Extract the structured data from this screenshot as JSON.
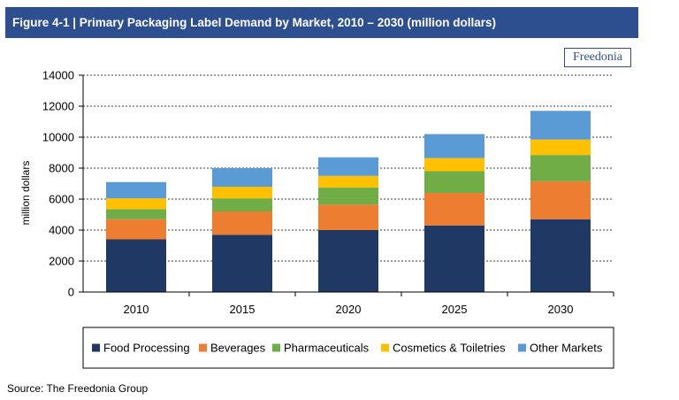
{
  "header": {
    "title": "Figure 4-1 | Primary Packaging Label Demand by Market, 2010 – 2030 (million dollars)"
  },
  "logo": {
    "text": "Freedonia"
  },
  "source": "Source: The Freedonia Group",
  "chart_data": {
    "type": "bar",
    "stacked": true,
    "title": "",
    "xlabel": "",
    "ylabel": "million dollars",
    "ylim": [
      0,
      14000
    ],
    "yticks": [
      0,
      2000,
      4000,
      6000,
      8000,
      10000,
      12000,
      14000
    ],
    "grid": true,
    "legend_position": "bottom",
    "categories": [
      "2010",
      "2015",
      "2020",
      "2025",
      "2030"
    ],
    "series": [
      {
        "name": "Food Processing",
        "color": "#1f3864",
        "values": [
          3400,
          3700,
          4000,
          4300,
          4700
        ]
      },
      {
        "name": "Beverages",
        "color": "#ed7d31",
        "values": [
          1300,
          1500,
          1650,
          2100,
          2450
        ]
      },
      {
        "name": "Pharmaceuticals",
        "color": "#70ad47",
        "values": [
          650,
          850,
          1100,
          1400,
          1700
        ]
      },
      {
        "name": "Cosmetics & Toiletries",
        "color": "#ffc000",
        "values": [
          700,
          750,
          750,
          850,
          1000
        ]
      },
      {
        "name": "Other Markets",
        "color": "#5b9bd5",
        "values": [
          1050,
          1200,
          1200,
          1550,
          1850
        ]
      }
    ]
  }
}
